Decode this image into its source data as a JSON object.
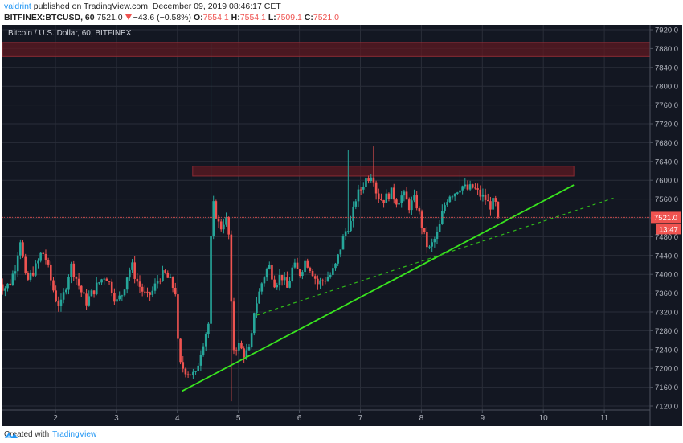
{
  "header": {
    "publisher": "valdrint",
    "published_text": " published on TradingView.com, December 09, 2019 08:46:17 CET",
    "symbol": "BITFINEX:BTCUSD, 60",
    "last": "7521.0",
    "change": "−43.6 (−0.58%)",
    "o_label": "O:",
    "o": "7554.1",
    "h_label": "H:",
    "h": "7554.1",
    "l_label": "L:",
    "l": "7509.1",
    "c_label": "C:",
    "c": "7521.0"
  },
  "chart": {
    "legend": "Bitcoin / U.S. Dollar, 60, BITFINEX",
    "colors": {
      "background": "#131722",
      "grid": "#2a2e39",
      "up": "#26a69a",
      "down": "#ef5350",
      "zone_fill": "#5d1a22",
      "zone_stroke": "#8b2a33",
      "trendline": "#39e51f",
      "price_line": "#ef5350",
      "axis_text": "#b2b5be"
    },
    "last_price_label": "7521.0",
    "countdown_label": "13:47"
  },
  "footer": {
    "created_with": "Created with",
    "brand": "TradingView"
  },
  "chart_data": {
    "type": "candlestick",
    "title": "Bitcoin / U.S. Dollar, 60, BITFINEX",
    "xlabel": "",
    "ylabel": "",
    "ylim": [
      7120,
      7920
    ],
    "y_ticks": [
      7120,
      7160,
      7200,
      7240,
      7280,
      7320,
      7360,
      7400,
      7440,
      7480,
      7520,
      7560,
      7600,
      7640,
      7680,
      7720,
      7760,
      7800,
      7840,
      7880,
      7920
    ],
    "x_ticks": [
      "2",
      "3",
      "4",
      "5",
      "6",
      "7",
      "8",
      "9",
      "10",
      "11"
    ],
    "x_tick_days": [
      2,
      3,
      4,
      5,
      6,
      7,
      8,
      9,
      10,
      11
    ],
    "grid": true,
    "last_price": 7521.0,
    "close_path": [
      [
        1.05,
        7395
      ],
      [
        1.15,
        7370
      ],
      [
        1.25,
        7380
      ],
      [
        1.35,
        7420
      ],
      [
        1.42,
        7480
      ],
      [
        1.46,
        7440
      ],
      [
        1.52,
        7380
      ],
      [
        1.6,
        7400
      ],
      [
        1.7,
        7420
      ],
      [
        1.78,
        7450
      ],
      [
        1.85,
        7430
      ],
      [
        1.92,
        7390
      ],
      [
        2.0,
        7350
      ],
      [
        2.08,
        7330
      ],
      [
        2.18,
        7380
      ],
      [
        2.25,
        7420
      ],
      [
        2.32,
        7400
      ],
      [
        2.4,
        7370
      ],
      [
        2.5,
        7340
      ],
      [
        2.6,
        7360
      ],
      [
        2.7,
        7380
      ],
      [
        2.82,
        7400
      ],
      [
        2.92,
        7370
      ],
      [
        3.0,
        7340
      ],
      [
        3.1,
        7360
      ],
      [
        3.18,
        7400
      ],
      [
        3.25,
        7420
      ],
      [
        3.32,
        7390
      ],
      [
        3.4,
        7370
      ],
      [
        3.5,
        7350
      ],
      [
        3.6,
        7365
      ],
      [
        3.7,
        7395
      ],
      [
        3.8,
        7400
      ],
      [
        3.9,
        7380
      ],
      [
        3.98,
        7360
      ],
      [
        4.02,
        7210
      ],
      [
        4.1,
        7200
      ],
      [
        4.2,
        7190
      ],
      [
        4.3,
        7185
      ],
      [
        4.37,
        7230
      ],
      [
        4.45,
        7270
      ],
      [
        4.52,
        7300
      ],
      [
        4.56,
        7530
      ],
      [
        4.6,
        7550
      ],
      [
        4.66,
        7510
      ],
      [
        4.72,
        7500
      ],
      [
        4.78,
        7520
      ],
      [
        4.82,
        7510
      ],
      [
        4.86,
        7460
      ],
      [
        4.9,
        7240
      ],
      [
        5.0,
        7250
      ],
      [
        5.1,
        7230
      ],
      [
        5.2,
        7240
      ],
      [
        5.25,
        7320
      ],
      [
        5.32,
        7350
      ],
      [
        5.4,
        7390
      ],
      [
        5.5,
        7420
      ],
      [
        5.6,
        7380
      ],
      [
        5.7,
        7400
      ],
      [
        5.8,
        7370
      ],
      [
        5.9,
        7420
      ],
      [
        6.0,
        7400
      ],
      [
        6.1,
        7430
      ],
      [
        6.2,
        7410
      ],
      [
        6.3,
        7380
      ],
      [
        6.42,
        7390
      ],
      [
        6.52,
        7400
      ],
      [
        6.6,
        7420
      ],
      [
        6.7,
        7470
      ],
      [
        6.78,
        7500
      ],
      [
        6.85,
        7510
      ],
      [
        6.92,
        7560
      ],
      [
        7.0,
        7580
      ],
      [
        7.08,
        7600
      ],
      [
        7.15,
        7610
      ],
      [
        7.2,
        7620
      ],
      [
        7.25,
        7580
      ],
      [
        7.32,
        7560
      ],
      [
        7.4,
        7560
      ],
      [
        7.5,
        7575
      ],
      [
        7.6,
        7555
      ],
      [
        7.7,
        7570
      ],
      [
        7.8,
        7545
      ],
      [
        7.9,
        7560
      ],
      [
        7.98,
        7520
      ],
      [
        8.05,
        7480
      ],
      [
        8.12,
        7450
      ],
      [
        8.2,
        7470
      ],
      [
        8.28,
        7490
      ],
      [
        8.36,
        7540
      ],
      [
        8.45,
        7570
      ],
      [
        8.55,
        7575
      ],
      [
        8.65,
        7590
      ],
      [
        8.75,
        7580
      ],
      [
        8.85,
        7585
      ],
      [
        8.95,
        7570
      ],
      [
        9.05,
        7560
      ],
      [
        9.12,
        7545
      ],
      [
        9.2,
        7555
      ],
      [
        9.28,
        7521
      ]
    ],
    "spikes": [
      {
        "day": 4.56,
        "high": 7890,
        "low": 7280
      },
      {
        "day": 4.9,
        "low": 7130
      },
      {
        "day": 6.78,
        "high": 7665
      },
      {
        "day": 7.2,
        "high": 7672
      },
      {
        "day": 8.65,
        "high": 7620
      }
    ],
    "resistance_zones": [
      {
        "day_start": 1.0,
        "day_end": 11.75,
        "top": 7893,
        "bottom": 7863
      },
      {
        "day_start": 4.25,
        "day_end": 10.5,
        "top": 7630,
        "bottom": 7609
      }
    ],
    "trendlines": [
      {
        "style": "solid",
        "from": [
          4.08,
          7152
        ],
        "to": [
          10.5,
          7590
        ]
      },
      {
        "style": "dashed",
        "from": [
          5.3,
          7313
        ],
        "to": [
          11.15,
          7562
        ]
      }
    ]
  }
}
